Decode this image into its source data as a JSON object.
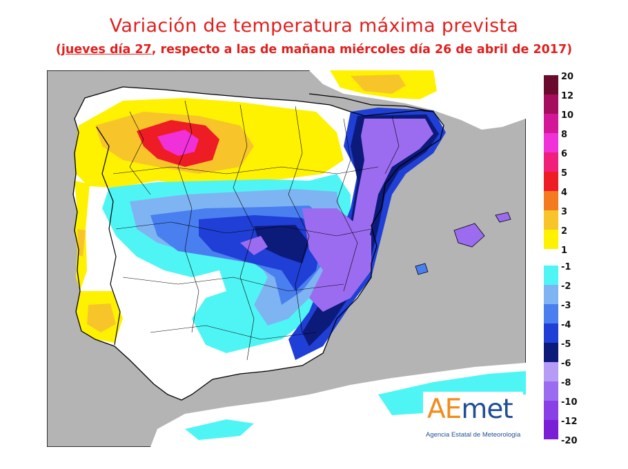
{
  "title": "Variación de temperatura máxima prevista",
  "subtitle": {
    "open": "(",
    "day_underlined": "jueves día 27",
    "rest": ", respecto a las de mañana miércoles  día 26 de abril de 2017)"
  },
  "legend": {
    "warming": [
      {
        "label": "20",
        "color": "#6a0a2c"
      },
      {
        "label": "12",
        "color": "#a50d5f"
      },
      {
        "label": "10",
        "color": "#d41796"
      },
      {
        "label": "8",
        "color": "#f030d8"
      },
      {
        "label": "6",
        "color": "#f0207a"
      },
      {
        "label": "5",
        "color": "#ee1c24"
      },
      {
        "label": "4",
        "color": "#f47a20"
      },
      {
        "label": "3",
        "color": "#f7c52a"
      },
      {
        "label": "2",
        "color": "#fef200"
      },
      {
        "label": "1",
        "color": ""
      }
    ],
    "cooling": [
      {
        "label": "-1",
        "color": "#4ff5f4"
      },
      {
        "label": "-2",
        "color": "#7fb4f2"
      },
      {
        "label": "-3",
        "color": "#4a7ff0"
      },
      {
        "label": "-4",
        "color": "#1f3fd6"
      },
      {
        "label": "-5",
        "color": "#0c1a7a"
      },
      {
        "label": "-6",
        "color": "#b69cf5"
      },
      {
        "label": "-8",
        "color": "#9c6cf0"
      },
      {
        "label": "-10",
        "color": "#8a3ee6"
      },
      {
        "label": "-12",
        "color": "#7a1fd6"
      },
      {
        "label": "-20",
        "color": ""
      }
    ]
  },
  "map_colors": {
    "sea": "#b4b4b4",
    "land_no_change": "#ffffff",
    "border": "#000000"
  },
  "logo": {
    "word_ae": "AE",
    "word_met": "met",
    "agency": "Agencia Estatal de Meteorología"
  }
}
